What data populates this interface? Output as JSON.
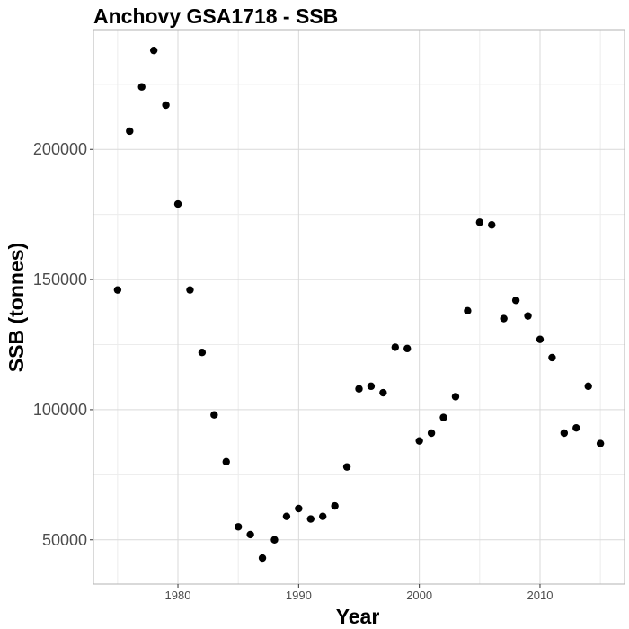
{
  "chart_data": {
    "type": "scatter",
    "title": "Anchovy GSA1718 - SSB",
    "xlabel": "Year",
    "ylabel": "SSB (tonnes)",
    "xlim": [
      1973.0,
      2017.0
    ],
    "ylim": [
      33000,
      246000
    ],
    "x_ticks": [
      1980,
      1990,
      2000,
      2010
    ],
    "y_ticks": [
      50000,
      100000,
      150000,
      200000
    ],
    "grid": true,
    "legend": "none",
    "point_color": "#000000",
    "x": [
      1975,
      1976,
      1977,
      1978,
      1979,
      1980,
      1981,
      1982,
      1983,
      1984,
      1985,
      1986,
      1987,
      1988,
      1989,
      1990,
      1991,
      1992,
      1993,
      1994,
      1995,
      1996,
      1997,
      1998,
      1999,
      2000,
      2001,
      2002,
      2003,
      2004,
      2005,
      2006,
      2007,
      2008,
      2009,
      2010,
      2011,
      2012,
      2013,
      2014,
      2015
    ],
    "y": [
      146000,
      207000,
      224000,
      238000,
      217000,
      179000,
      146000,
      122000,
      98000,
      80000,
      55000,
      52000,
      43000,
      50000,
      59000,
      62000,
      58000,
      59000,
      63000,
      78000,
      108000,
      109000,
      106500,
      124000,
      123500,
      88000,
      91000,
      97000,
      105000,
      138000,
      172000,
      171000,
      135000,
      142000,
      136000,
      127000,
      120000,
      91000,
      93000,
      109000,
      87000
    ]
  }
}
